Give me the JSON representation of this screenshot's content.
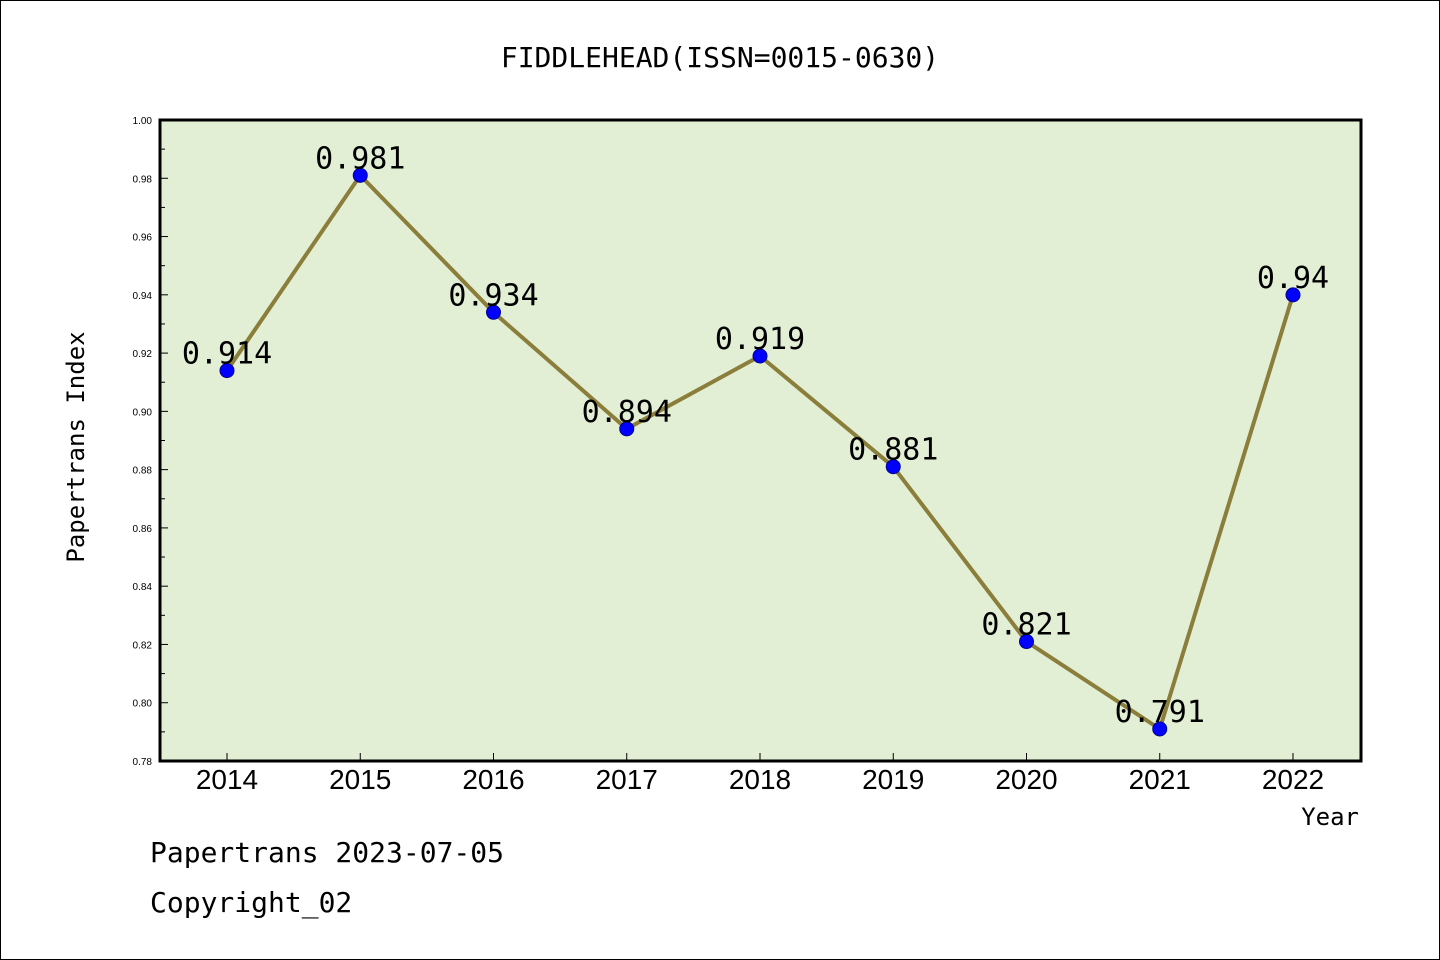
{
  "chart_data": {
    "type": "line",
    "title": "FIDDLEHEAD(ISSN=0015-0630)",
    "xlabel": "Year",
    "ylabel": "Papertrans Index",
    "categories": [
      "2014",
      "2015",
      "2016",
      "2017",
      "2018",
      "2019",
      "2020",
      "2021",
      "2022"
    ],
    "series": [
      {
        "values": [
          0.914,
          0.981,
          0.934,
          0.894,
          0.919,
          0.881,
          0.821,
          0.791,
          0.94
        ]
      }
    ],
    "data_labels": [
      "0.914",
      "0.981",
      "0.934",
      "0.894",
      "0.919",
      "0.881",
      "0.821",
      "0.791",
      "0.94"
    ],
    "ylim": [
      0.78,
      1.0
    ],
    "yticks": [
      "0.78",
      "0.80",
      "0.82",
      "0.84",
      "0.86",
      "0.88",
      "0.90",
      "0.92",
      "0.94",
      "0.96",
      "0.98",
      "1.00"
    ],
    "grid": false,
    "colors": {
      "plot_background": "#e2efd5",
      "line": "#8b7d3a",
      "marker": "#0000ff"
    }
  },
  "footer": {
    "line1": "Papertrans 2023-07-05",
    "line2": "Copyright_02"
  }
}
